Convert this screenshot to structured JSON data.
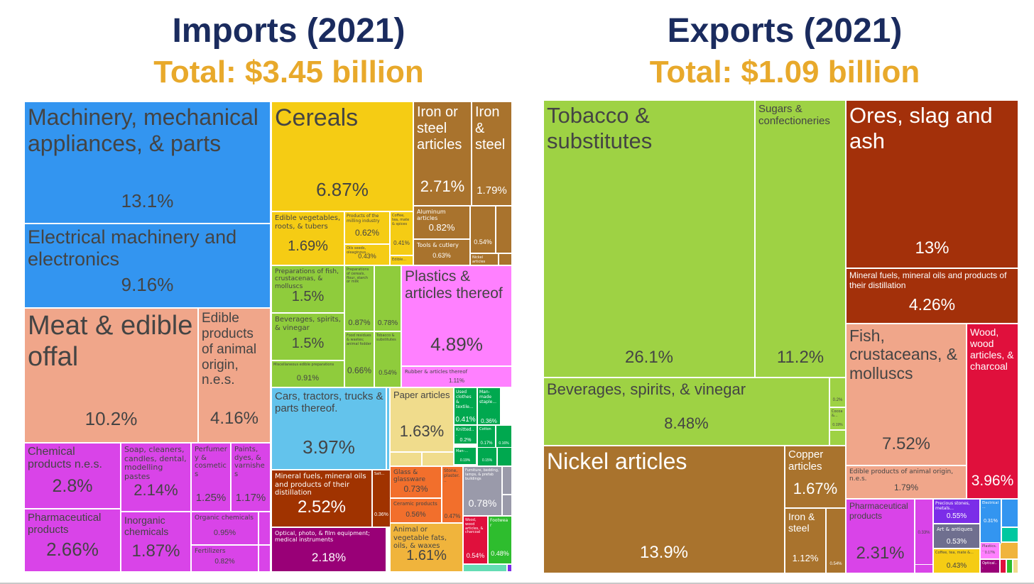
{
  "chart_data": [
    {
      "type": "treemap",
      "title": "Imports (2021)",
      "subtitle": "Total: $3.45 billion",
      "unit": "percent of total",
      "items": [
        {
          "label": "Machinery, mechanical appliances, & parts",
          "percent": "13.1%",
          "value": 13.1,
          "color": "#3395f0"
        },
        {
          "label": "Electrical machinery and electronics",
          "percent": "9.16%",
          "value": 9.16,
          "color": "#3395f0"
        },
        {
          "label": "Meat & edible offal",
          "percent": "10.2%",
          "value": 10.2,
          "color": "#f0a68a"
        },
        {
          "label": "Edible products of animal origin, n.e.s.",
          "percent": "4.16%",
          "value": 4.16,
          "color": "#f0a68a"
        },
        {
          "label": "Chemical products n.e.s.",
          "percent": "2.8%",
          "value": 2.8,
          "color": "#d944e8"
        },
        {
          "label": "Soap, cleaners, candles, dental, modelling pastes",
          "percent": "2.14%",
          "value": 2.14,
          "color": "#d944e8"
        },
        {
          "label": "Perfumery & cosmetics",
          "percent": "1.25%",
          "value": 1.25,
          "color": "#d944e8"
        },
        {
          "label": "Paints, dyes, & varnishes",
          "percent": "1.17%",
          "value": 1.17,
          "color": "#d944e8"
        },
        {
          "label": "Pharmaceutical products",
          "percent": "2.66%",
          "value": 2.66,
          "color": "#d944e8"
        },
        {
          "label": "Inorganic chemicals",
          "percent": "1.87%",
          "value": 1.87,
          "color": "#d944e8"
        },
        {
          "label": "Organic chemicals",
          "percent": "0.95%",
          "value": 0.95,
          "color": "#d944e8"
        },
        {
          "label": "Fertilizers",
          "percent": "0.82%",
          "value": 0.82,
          "color": "#d944e8"
        },
        {
          "label": "Cereals",
          "percent": "6.87%",
          "value": 6.87,
          "color": "#f5cc14"
        },
        {
          "label": "Edible vegetables, roots, & tubers",
          "percent": "1.69%",
          "value": 1.69,
          "color": "#f5cc14"
        },
        {
          "label": "Products of the milling industry",
          "percent": "0.62%",
          "value": 0.62,
          "color": "#f5cc14"
        },
        {
          "label": "Oils seeds, oleaginous...",
          "percent": "0.43%",
          "value": 0.43,
          "color": "#f5cc14"
        },
        {
          "label": "Coffee, tea, mate & spices",
          "percent": "0.41%",
          "value": 0.41,
          "color": "#f5cc14"
        },
        {
          "label": "Edible...",
          "percent": "",
          "value": null,
          "color": "#f5cc14"
        },
        {
          "label": "Iron or steel articles",
          "percent": "2.71%",
          "value": 2.71,
          "color": "#a9732d"
        },
        {
          "label": "Iron & steel",
          "percent": "1.79%",
          "value": 1.79,
          "color": "#a9732d"
        },
        {
          "label": "Aluminum articles",
          "percent": "0.82%",
          "value": 0.82,
          "color": "#a9732d"
        },
        {
          "label": "Tools & cutlery",
          "percent": "0.63%",
          "value": 0.63,
          "color": "#a9732d"
        },
        {
          "label": "",
          "percent": "0.54%",
          "value": 0.54,
          "color": "#a9732d"
        },
        {
          "label": "Nickel articles",
          "percent": "",
          "value": null,
          "color": "#a9732d"
        },
        {
          "label": "Preparations of fish, crustacenas, & molluscs",
          "percent": "1.5%",
          "value": 1.5,
          "color": "#8fcc3c"
        },
        {
          "label": "Beverages, spirits, & vinegar",
          "percent": "1.5%",
          "value": 1.5,
          "color": "#8fcc3c"
        },
        {
          "label": "Miscellaneous edible preparations",
          "percent": "0.91%",
          "value": 0.91,
          "color": "#8fcc3c"
        },
        {
          "label": "Preparations of cereals, flour, starch or milk",
          "percent": "0.87%",
          "value": 0.87,
          "color": "#8fcc3c"
        },
        {
          "label": "",
          "percent": "0.78%",
          "value": 0.78,
          "color": "#8fcc3c"
        },
        {
          "label": "Food residues & wastes; animal fodder",
          "percent": "0.66%",
          "value": 0.66,
          "color": "#8fcc3c"
        },
        {
          "label": "Tobacco & substitutes",
          "percent": "0.54%",
          "value": 0.54,
          "color": "#8fcc3c"
        },
        {
          "label": "Plastics & articles thereof",
          "percent": "4.89%",
          "value": 4.89,
          "color": "#ff80ff"
        },
        {
          "label": "Rubber & articles thereof",
          "percent": "1.11%",
          "value": 1.11,
          "color": "#ff80ff"
        },
        {
          "label": "Cars, tractors, trucks & parts thereof.",
          "percent": "3.97%",
          "value": 3.97,
          "color": "#63c3ec"
        },
        {
          "label": "Paper articles",
          "percent": "1.63%",
          "value": 1.63,
          "color": "#f0dc8c"
        },
        {
          "label": "Used clothes & textile...",
          "percent": "0.41%",
          "value": 0.41,
          "color": "#00a84f"
        },
        {
          "label": "Man-made staple...",
          "percent": "0.36%",
          "value": 0.36,
          "color": "#00a84f"
        },
        {
          "label": "Knitted...",
          "percent": "0.2%",
          "value": 0.2,
          "color": "#00a84f"
        },
        {
          "label": "Cotton",
          "percent": "0.17%",
          "value": 0.17,
          "color": "#00a84f"
        },
        {
          "label": "",
          "percent": "0.16%",
          "value": 0.16,
          "color": "#00a84f"
        },
        {
          "label": "Man-...",
          "percent": "0.19%",
          "value": 0.19,
          "color": "#00a84f"
        },
        {
          "label": "",
          "percent": "0.15%",
          "value": 0.15,
          "color": "#00a84f"
        },
        {
          "label": "Mineral fuels, mineral oils and products of their distillation",
          "percent": "2.52%",
          "value": 2.52,
          "color": "#a03300"
        },
        {
          "label": "Salt...",
          "percent": "0.36%",
          "value": 0.36,
          "color": "#a03300"
        },
        {
          "label": "Optical, photo, & film equipment; medical instruments",
          "percent": "2.18%",
          "value": 2.18,
          "color": "#990077"
        },
        {
          "label": "Glass & glassware",
          "percent": "0.73%",
          "value": 0.73,
          "color": "#f26f2c"
        },
        {
          "label": "Ceramic products",
          "percent": "0.56%",
          "value": 0.56,
          "color": "#f26f2c"
        },
        {
          "label": "Stone, plaster...",
          "percent": "0.47%",
          "value": 0.47,
          "color": "#f26f2c"
        },
        {
          "label": "Furniture, bedding, lamps, & prefab buildings",
          "percent": "0.78%",
          "value": 0.78,
          "color": "#9a9aaa"
        },
        {
          "label": "Animal or vegetable fats, oils, & waxes",
          "percent": "1.61%",
          "value": 1.61,
          "color": "#f0b43c"
        },
        {
          "label": "Wood, wood articles, & charcoal",
          "percent": "0.54%",
          "value": 0.54,
          "color": "#e0103c"
        },
        {
          "label": "Footwear",
          "percent": "0.48%",
          "value": 0.48,
          "color": "#2ebd2e"
        }
      ]
    },
    {
      "type": "treemap",
      "title": "Exports (2021)",
      "subtitle": "Total: $1.09 billion",
      "unit": "percent of total",
      "items": [
        {
          "label": "Tobacco & substitutes",
          "percent": "26.1%",
          "value": 26.1,
          "color": "#9ed244"
        },
        {
          "label": "Sugars & confectioneries",
          "percent": "11.2%",
          "value": 11.2,
          "color": "#9ed244"
        },
        {
          "label": "Beverages, spirits, & vinegar",
          "percent": "8.48%",
          "value": 8.48,
          "color": "#9ed244"
        },
        {
          "label": "",
          "percent": "0.2%",
          "value": 0.2,
          "color": "#9ed244"
        },
        {
          "label": "Cocoa &...",
          "percent": "0.19%",
          "value": 0.19,
          "color": "#9ed244"
        },
        {
          "label": "Ores, slag and ash",
          "percent": "13%",
          "value": 13,
          "color": "#a3300a"
        },
        {
          "label": "Mineral fuels, mineral oils and products of their distillation",
          "percent": "4.26%",
          "value": 4.26,
          "color": "#a3300a"
        },
        {
          "label": "Fish, crustaceans, & molluscs",
          "percent": "7.52%",
          "value": 7.52,
          "color": "#f0a68a"
        },
        {
          "label": "Edible products of animal origin, n.e.s.",
          "percent": "1.79%",
          "value": 1.79,
          "color": "#f0a68a"
        },
        {
          "label": "Wood, wood articles, & charcoal",
          "percent": "3.96%",
          "value": 3.96,
          "color": "#e0103c"
        },
        {
          "label": "Nickel articles",
          "percent": "13.9%",
          "value": 13.9,
          "color": "#a9732d"
        },
        {
          "label": "Copper articles",
          "percent": "1.67%",
          "value": 1.67,
          "color": "#a9732d"
        },
        {
          "label": "Iron & steel",
          "percent": "1.12%",
          "value": 1.12,
          "color": "#a9732d"
        },
        {
          "label": "",
          "percent": "0.54%",
          "value": 0.54,
          "color": "#a9732d"
        },
        {
          "label": "Pharmaceutical products",
          "percent": "2.31%",
          "value": 2.31,
          "color": "#d944e8"
        },
        {
          "label": "",
          "percent": "0.33%",
          "value": 0.33,
          "color": "#d944e8"
        },
        {
          "label": "Precious stones, metals...",
          "percent": "0.55%",
          "value": 0.55,
          "color": "#7b2de8"
        },
        {
          "label": "Art & antiques",
          "percent": "0.53%",
          "value": 0.53,
          "color": "#6f6f8f"
        },
        {
          "label": "Electrical...",
          "percent": "0.31%",
          "value": 0.31,
          "color": "#3395f0"
        },
        {
          "label": "Coffee, tea, mate &...",
          "percent": "0.43%",
          "value": 0.43,
          "color": "#f5cc14"
        },
        {
          "label": "Plastics...",
          "percent": "0.17%",
          "value": 0.17,
          "color": "#ff80ff"
        },
        {
          "label": "Optical...",
          "percent": "",
          "value": null,
          "color": "#990077"
        }
      ]
    }
  ]
}
